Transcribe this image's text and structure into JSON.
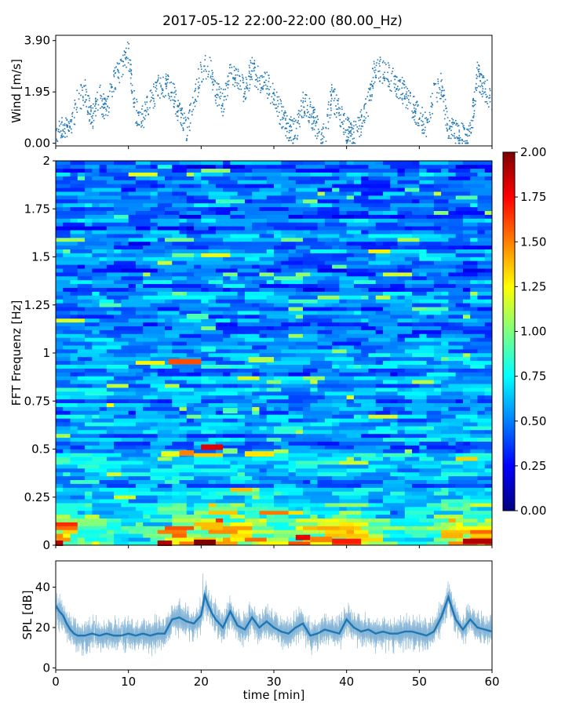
{
  "title": "2017-05-12 22:00-22:00 (80.00_Hz)",
  "chart_data": [
    {
      "type": "scatter",
      "ylabel": "Wind [m/s]",
      "ylim": [
        -0.1,
        4.1
      ],
      "yticks": [
        "0.00",
        "1.95",
        "3.90"
      ],
      "ytick_values": [
        0.0,
        1.95,
        3.9
      ],
      "xlim": [
        0,
        60
      ],
      "series": [
        {
          "color": "#1f77b4",
          "x": [
            0,
            1,
            2,
            3,
            4,
            5,
            6,
            7,
            8,
            9,
            10,
            11,
            12,
            13,
            14,
            15,
            16,
            17,
            18,
            19,
            20,
            21,
            22,
            23,
            24,
            25,
            26,
            27,
            28,
            29,
            30,
            31,
            32,
            33,
            34,
            35,
            36,
            37,
            38,
            39,
            40,
            41,
            42,
            43,
            44,
            45,
            46,
            47,
            48,
            49,
            50,
            51,
            52,
            53,
            54,
            55,
            56,
            57,
            58,
            59,
            60
          ],
          "y": [
            0.5,
            0.7,
            0.4,
            1.6,
            2.0,
            0.9,
            1.8,
            1.2,
            2.4,
            2.9,
            3.4,
            1.2,
            0.9,
            1.6,
            2.1,
            2.2,
            2.0,
            1.1,
            0.5,
            1.6,
            2.8,
            3.0,
            2.0,
            1.5,
            2.6,
            2.4,
            2.0,
            2.8,
            2.4,
            2.3,
            1.7,
            1.1,
            0.6,
            0.4,
            1.5,
            1.2,
            0.6,
            0.3,
            1.8,
            1.2,
            0.5,
            0.4,
            0.8,
            1.5,
            3.0,
            2.7,
            2.5,
            2.2,
            1.9,
            1.4,
            1.0,
            0.7,
            1.8,
            2.2,
            0.6,
            0.4,
            0.3,
            0.3,
            2.6,
            2.1,
            1.6
          ]
        }
      ]
    },
    {
      "type": "heatmap",
      "ylabel": "FFT Frequenz [Hz]",
      "ylim": [
        0,
        2
      ],
      "xlim": [
        0,
        60
      ],
      "yticks": [
        "0",
        "0.25",
        "0.5",
        "0.75",
        "1",
        "1.25",
        "1.5",
        "1.75",
        "2"
      ],
      "ytick_values": [
        0,
        0.25,
        0.5,
        0.75,
        1,
        1.25,
        1.5,
        1.75,
        2
      ],
      "colorbar": {
        "range": [
          0,
          2
        ],
        "ticks": [
          "0.00",
          "0.25",
          "0.50",
          "0.75",
          "1.00",
          "1.25",
          "1.50",
          "1.75",
          "2.00"
        ],
        "tick_values": [
          0,
          0.25,
          0.5,
          0.75,
          1.0,
          1.25,
          1.5,
          1.75,
          2.0
        ],
        "colormap": "jet"
      },
      "colormap_colors": [
        "#00007f",
        "#0000ff",
        "#007fff",
        "#00ffff",
        "#7fff7f",
        "#ffff00",
        "#ff7f00",
        "#ff0000",
        "#7f0000"
      ],
      "hotspots": [
        {
          "time": [
            15.5,
            20
          ],
          "freq": 0.955,
          "level": 1.6
        },
        {
          "time": [
            26.5,
            30
          ],
          "freq": 0.965,
          "level": 1.1
        },
        {
          "time": [
            14.5,
            17
          ],
          "freq": 0.475,
          "level": 1.2
        },
        {
          "time": [
            17,
            19
          ],
          "freq": 0.48,
          "level": 1.5
        },
        {
          "time": [
            20,
            23
          ],
          "freq": 0.51,
          "level": 1.8
        },
        {
          "time": [
            23,
            25
          ],
          "freq": 0.49,
          "level": 1.0
        },
        {
          "time": [
            26,
            30
          ],
          "freq": 0.475,
          "level": 1.3
        },
        {
          "time": [
            0,
            2
          ],
          "freq": 0.44,
          "level": 0.9
        },
        {
          "time": [
            0,
            1
          ],
          "freq": 0.01,
          "level": 1.9
        },
        {
          "time": [
            14,
            16
          ],
          "freq": 0.01,
          "level": 1.9
        },
        {
          "time": [
            19,
            22
          ],
          "freq": 0.015,
          "level": 2.0
        },
        {
          "time": [
            33,
            35
          ],
          "freq": 0.04,
          "level": 1.8
        },
        {
          "time": [
            35,
            38
          ],
          "freq": 0.03,
          "level": 1.5
        },
        {
          "time": [
            38,
            42
          ],
          "freq": 0.02,
          "level": 1.7
        },
        {
          "time": [
            53,
            56
          ],
          "freq": 0.05,
          "level": 1.4
        },
        {
          "time": [
            56,
            60
          ],
          "freq": 0.02,
          "level": 1.9
        },
        {
          "time": [
            23,
            25
          ],
          "freq": 0.7,
          "level": 0.9
        },
        {
          "time": [
            20,
            22
          ],
          "freq": 1.02,
          "level": 0.8
        },
        {
          "time": [
            18,
            21
          ],
          "freq": 1.19,
          "level": 0.9
        }
      ]
    },
    {
      "type": "line",
      "xlabel": "time [min]",
      "ylabel": "SPL [dB]",
      "xlim": [
        0,
        60
      ],
      "ylim": [
        -1,
        53
      ],
      "xticks": [
        "0",
        "10",
        "20",
        "30",
        "40",
        "50",
        "60"
      ],
      "xtick_values": [
        0,
        10,
        20,
        30,
        40,
        50,
        60
      ],
      "yticks": [
        "0",
        "20",
        "40"
      ],
      "ytick_values": [
        0,
        20,
        40
      ],
      "series": [
        {
          "color": "#1f77b4",
          "x": [
            0,
            0.5,
            1,
            1.5,
            2,
            2.5,
            3,
            4,
            5,
            6,
            7,
            8,
            9,
            10,
            11,
            12,
            13,
            14,
            15,
            16,
            17,
            18,
            19,
            20,
            20.5,
            21,
            21.5,
            22,
            23,
            24,
            25,
            26,
            27,
            28,
            29,
            30,
            31,
            32,
            33,
            34,
            35,
            36,
            37,
            38,
            39,
            40,
            41,
            42,
            43,
            44,
            45,
            46,
            47,
            48,
            49,
            50,
            51,
            52,
            53,
            54,
            55,
            56,
            57,
            58,
            59,
            60
          ],
          "y": [
            31,
            28,
            26,
            22,
            19,
            17,
            16,
            16,
            17,
            16,
            17,
            16,
            16,
            17,
            16,
            17,
            16,
            17,
            17,
            24,
            25,
            23,
            22,
            26,
            36,
            31,
            27,
            24,
            20,
            28,
            21,
            19,
            25,
            20,
            23,
            20,
            18,
            17,
            20,
            22,
            16,
            17,
            19,
            18,
            17,
            24,
            20,
            18,
            19,
            17,
            18,
            17,
            17,
            18,
            18,
            17,
            16,
            18,
            25,
            35,
            24,
            19,
            24,
            20,
            19,
            18
          ]
        }
      ]
    }
  ]
}
